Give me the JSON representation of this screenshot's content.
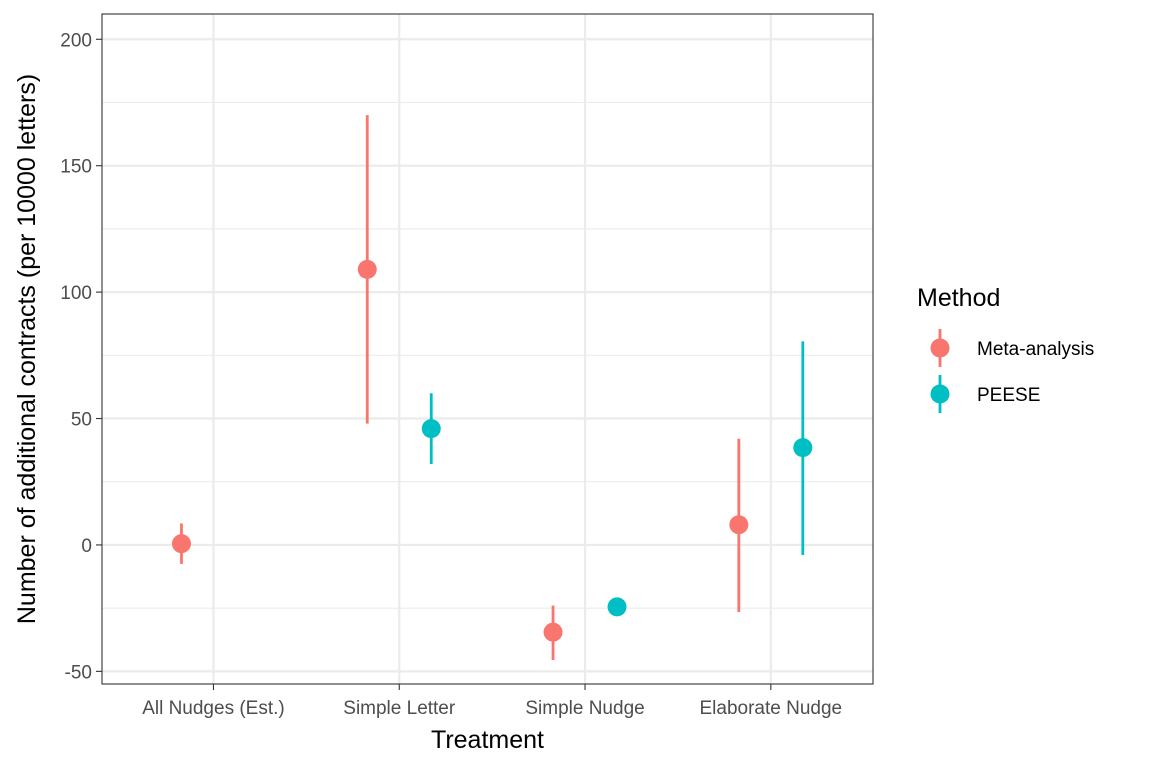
{
  "chart_data": {
    "type": "scatter",
    "xlabel": "Treatment",
    "ylabel": "Number of additional contracts (per 10000 letters)",
    "categories": [
      "All Nudges (Est.)",
      "Simple Letter",
      "Simple Nudge",
      "Elaborate Nudge"
    ],
    "ylim": [
      -55,
      210
    ],
    "yticks": [
      -50,
      0,
      50,
      100,
      150,
      200
    ],
    "grid": true,
    "legend": {
      "title": "Method",
      "placement": "right"
    },
    "series": [
      {
        "name": "Meta-analysis",
        "color": "#F8766D",
        "points": [
          {
            "category": "All Nudges (Est.)",
            "estimate": 0.5,
            "lower": -7.5,
            "upper": 8.5
          },
          {
            "category": "Simple Letter",
            "estimate": 109,
            "lower": 48,
            "upper": 170
          },
          {
            "category": "Simple Nudge",
            "estimate": -34.5,
            "lower": -45.5,
            "upper": -24
          },
          {
            "category": "Elaborate Nudge",
            "estimate": 8,
            "lower": -26.5,
            "upper": 42
          }
        ]
      },
      {
        "name": "PEESE",
        "color": "#00BFC4",
        "points": [
          {
            "category": "Simple Letter",
            "estimate": 46,
            "lower": 32,
            "upper": 60
          },
          {
            "category": "Simple Nudge",
            "estimate": -24.5,
            "lower": -24.5,
            "upper": -24.5
          },
          {
            "category": "Elaborate Nudge",
            "estimate": 38.5,
            "lower": -4,
            "upper": 80.5
          }
        ]
      }
    ]
  }
}
